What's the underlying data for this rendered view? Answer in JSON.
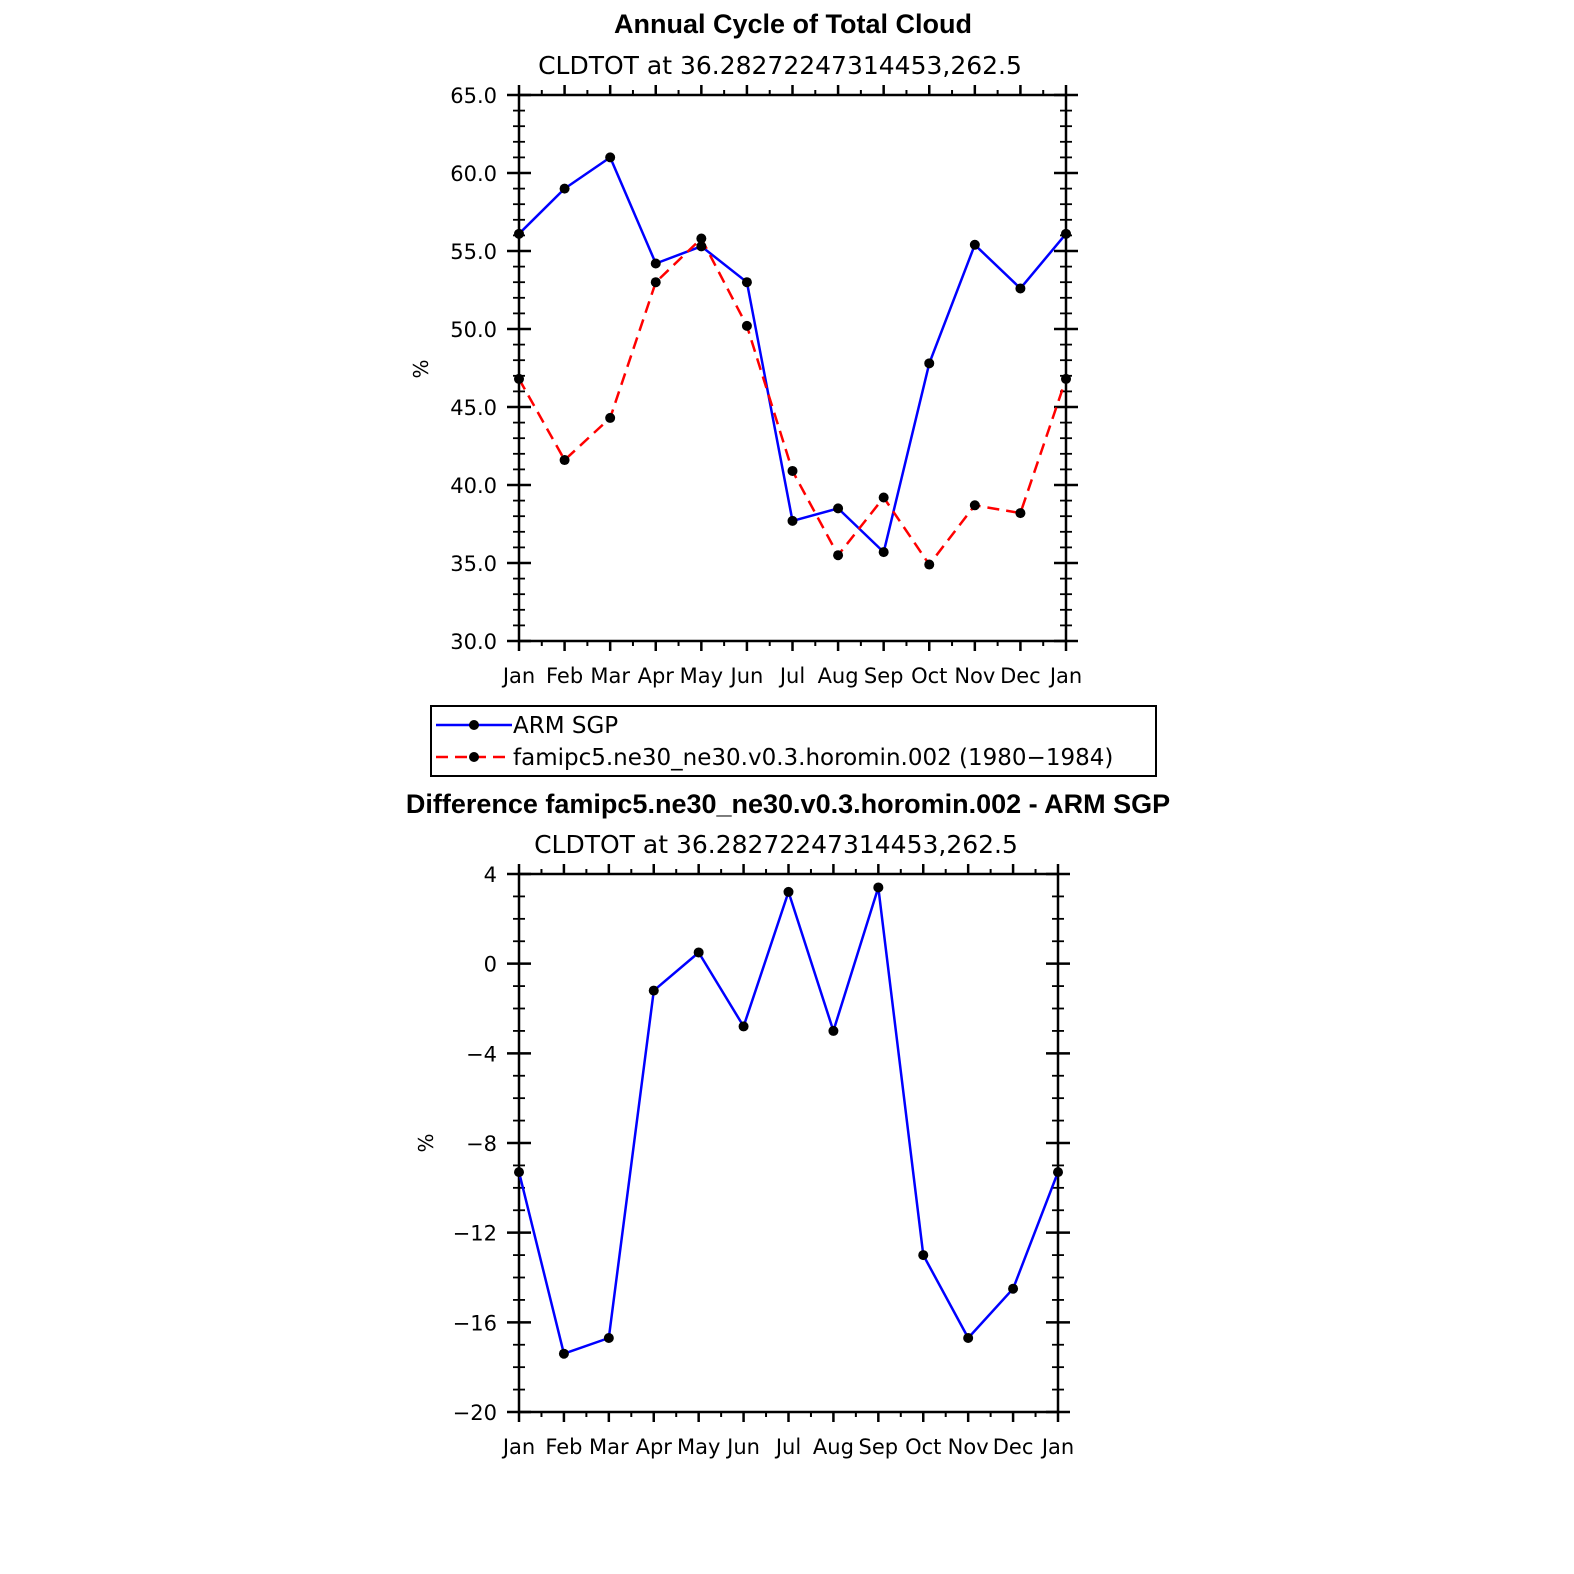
{
  "chart_data": [
    {
      "type": "line",
      "title": "Annual Cycle of Total Cloud",
      "subtitle": "CLDTOT at 36.28272247314453,262.5",
      "xlabel": "",
      "ylabel": "%",
      "categories": [
        "Jan",
        "Feb",
        "Mar",
        "Apr",
        "May",
        "Jun",
        "Jul",
        "Aug",
        "Sep",
        "Oct",
        "Nov",
        "Dec",
        "Jan"
      ],
      "ylim": [
        30,
        65
      ],
      "y_ticks": [
        "30.0",
        "35.0",
        "40.0",
        "45.0",
        "50.0",
        "55.0",
        "60.0",
        "65.0"
      ],
      "grid": false,
      "legend_position": "bottom",
      "series": [
        {
          "name": "ARM SGP",
          "color": "#0000ff",
          "dash": "solid",
          "values": [
            56.1,
            59.0,
            61.0,
            54.2,
            55.3,
            53.0,
            37.7,
            38.5,
            35.7,
            47.8,
            55.4,
            52.6,
            56.1
          ]
        },
        {
          "name": "famipc5.ne30_ne30.v0.3.horomin.002 (1980−1984)",
          "color": "#ff0000",
          "dash": "dashed",
          "values": [
            46.8,
            41.6,
            44.3,
            53.0,
            55.8,
            50.2,
            40.9,
            35.5,
            39.2,
            34.9,
            38.7,
            38.2,
            46.8
          ]
        }
      ]
    },
    {
      "type": "line",
      "title": "Difference famipc5.ne30_ne30.v0.3.horomin.002 - ARM SGP",
      "subtitle": "CLDTOT at 36.28272247314453,262.5",
      "xlabel": "",
      "ylabel": "%",
      "categories": [
        "Jan",
        "Feb",
        "Mar",
        "Apr",
        "May",
        "Jun",
        "Jul",
        "Aug",
        "Sep",
        "Oct",
        "Nov",
        "Dec",
        "Jan"
      ],
      "ylim": [
        -20,
        4
      ],
      "y_ticks": [
        "−20",
        "−16",
        "−12",
        "−8",
        "−4",
        "0",
        "4"
      ],
      "grid": false,
      "series": [
        {
          "color": "#0000ff",
          "dash": "solid",
          "values": [
            -9.3,
            -17.4,
            -16.7,
            -1.2,
            0.5,
            -2.8,
            3.2,
            -3.0,
            3.4,
            -13.0,
            -16.7,
            -14.5,
            -9.3
          ]
        }
      ]
    }
  ]
}
